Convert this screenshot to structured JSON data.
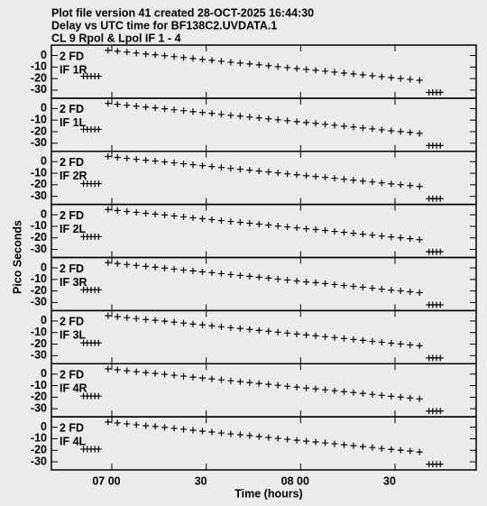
{
  "chart_data": {
    "type": "scatter",
    "title_lines": [
      "Plot file version 41  created 28-OCT-2025 16:44:30",
      "Delay vs UTC time for BF138C2.UVDATA.1",
      "CL 9  Rpol & Lpol  IF 1 - 4"
    ],
    "xlabel": "Time (hours)",
    "ylabel": "Pico Seconds",
    "color": "#000000",
    "xlim": [
      6.68,
      8.93
    ],
    "xticks": [
      {
        "value": 7,
        "label": "07 00"
      },
      {
        "value": 7.5,
        "label": "30"
      },
      {
        "value": 8,
        "label": "08 00"
      },
      {
        "value": 8.5,
        "label": "30"
      }
    ],
    "ylim": [
      -37,
      9
    ],
    "yticks": [
      0,
      -10,
      -20,
      -30
    ],
    "x": [
      6.85,
      6.87,
      6.89,
      6.91,
      6.93,
      6.98,
      7.03,
      7.08,
      7.13,
      7.18,
      7.23,
      7.28,
      7.33,
      7.38,
      7.43,
      7.48,
      7.53,
      7.58,
      7.63,
      7.68,
      7.73,
      7.78,
      7.83,
      7.88,
      7.93,
      7.98,
      8.03,
      8.08,
      8.13,
      8.18,
      8.23,
      8.28,
      8.33,
      8.38,
      8.43,
      8.48,
      8.53,
      8.58,
      8.63,
      8.68,
      8.7,
      8.72,
      8.74
    ],
    "series": [
      {
        "source": "2 FD",
        "name": "IF 1R",
        "values": [
          -18,
          -18,
          -18,
          -18,
          -18,
          4.5,
          3.7,
          2.9,
          2.1,
          1.3,
          0.6,
          -0.2,
          -1.0,
          -1.8,
          -2.6,
          -3.4,
          -4.2,
          -5.0,
          -5.8,
          -6.5,
          -7.3,
          -8.1,
          -8.9,
          -9.7,
          -10.5,
          -11.3,
          -12.1,
          -12.8,
          -13.6,
          -14.4,
          -15.2,
          -16.0,
          -16.8,
          -17.6,
          -18.4,
          -19.2,
          -19.9,
          -20.7,
          -21.5,
          -32,
          -32,
          -32,
          -32
        ]
      },
      {
        "source": "2 FD",
        "name": "IF 1L",
        "values": [
          -18,
          -18,
          -18,
          -18,
          -18,
          4.5,
          3.7,
          2.9,
          2.1,
          1.3,
          0.6,
          -0.2,
          -1.0,
          -1.8,
          -2.6,
          -3.4,
          -4.2,
          -5.0,
          -5.8,
          -6.5,
          -7.3,
          -8.1,
          -8.9,
          -9.7,
          -10.5,
          -11.3,
          -12.1,
          -12.8,
          -13.6,
          -14.4,
          -15.2,
          -16.0,
          -16.8,
          -17.6,
          -18.4,
          -19.2,
          -19.9,
          -20.7,
          -21.5,
          -32,
          -32,
          -32,
          -32
        ]
      },
      {
        "source": "2 FD",
        "name": "IF 2R",
        "values": [
          -19,
          -19,
          -19,
          -19,
          -19,
          4.5,
          3.7,
          2.9,
          2.1,
          1.3,
          0.6,
          -0.2,
          -1.0,
          -1.8,
          -2.6,
          -3.4,
          -4.2,
          -5.0,
          -5.8,
          -6.5,
          -7.3,
          -8.1,
          -8.9,
          -9.7,
          -10.5,
          -11.3,
          -12.1,
          -12.8,
          -13.6,
          -14.4,
          -15.2,
          -16.0,
          -16.8,
          -17.6,
          -18.4,
          -19.2,
          -19.9,
          -20.7,
          -21.5,
          -32,
          -32,
          -32,
          -32
        ]
      },
      {
        "source": "2 FD",
        "name": "IF 2L",
        "values": [
          -19,
          -19,
          -19,
          -19,
          -19,
          4.5,
          3.7,
          2.9,
          2.1,
          1.3,
          0.6,
          -0.2,
          -1.0,
          -1.8,
          -2.6,
          -3.4,
          -4.2,
          -5.0,
          -5.8,
          -6.5,
          -7.3,
          -8.1,
          -8.9,
          -9.7,
          -10.5,
          -11.3,
          -12.1,
          -12.8,
          -13.6,
          -14.4,
          -15.2,
          -16.0,
          -16.8,
          -17.6,
          -18.4,
          -19.2,
          -19.9,
          -20.7,
          -21.5,
          -32,
          -32,
          -32,
          -32
        ]
      },
      {
        "source": "2 FD",
        "name": "IF 3R",
        "values": [
          -19,
          -19,
          -19,
          -19,
          -19,
          4.5,
          3.7,
          2.9,
          2.1,
          1.3,
          0.6,
          -0.2,
          -1.0,
          -1.8,
          -2.6,
          -3.4,
          -4.2,
          -5.0,
          -5.8,
          -6.5,
          -7.3,
          -8.1,
          -8.9,
          -9.7,
          -10.5,
          -11.3,
          -12.1,
          -12.8,
          -13.6,
          -14.4,
          -15.2,
          -16.0,
          -16.8,
          -17.6,
          -18.4,
          -19.2,
          -19.9,
          -20.7,
          -21.5,
          -32,
          -32,
          -32,
          -32
        ]
      },
      {
        "source": "2 FD",
        "name": "IF 3L",
        "values": [
          -19,
          -19,
          -19,
          -19,
          -19,
          4.5,
          3.7,
          2.9,
          2.1,
          1.3,
          0.6,
          -0.2,
          -1.0,
          -1.8,
          -2.6,
          -3.4,
          -4.2,
          -5.0,
          -5.8,
          -6.5,
          -7.3,
          -8.1,
          -8.9,
          -9.7,
          -10.5,
          -11.3,
          -12.1,
          -12.8,
          -13.6,
          -14.4,
          -15.2,
          -16.0,
          -16.8,
          -17.6,
          -18.4,
          -19.2,
          -19.9,
          -20.7,
          -21.5,
          -32,
          -32,
          -32,
          -32
        ]
      },
      {
        "source": "2 FD",
        "name": "IF 4R",
        "values": [
          -19,
          -19,
          -19,
          -19,
          -19,
          4.5,
          3.7,
          2.9,
          2.1,
          1.3,
          0.6,
          -0.2,
          -1.0,
          -1.8,
          -2.6,
          -3.4,
          -4.2,
          -5.0,
          -5.8,
          -6.5,
          -7.3,
          -8.1,
          -8.9,
          -9.7,
          -10.5,
          -11.3,
          -12.1,
          -12.8,
          -13.6,
          -14.4,
          -15.2,
          -16.0,
          -16.8,
          -17.6,
          -18.4,
          -19.2,
          -19.9,
          -20.7,
          -21.5,
          -32,
          -32,
          -32,
          -32
        ]
      },
      {
        "source": "2 FD",
        "name": "IF 4L",
        "values": [
          -19,
          -19,
          -19,
          -19,
          -19,
          4.5,
          3.7,
          2.9,
          2.1,
          1.3,
          0.6,
          -0.2,
          -1.0,
          -1.8,
          -2.6,
          -3.4,
          -4.2,
          -5.0,
          -5.8,
          -6.5,
          -7.3,
          -8.1,
          -8.9,
          -9.7,
          -10.5,
          -11.3,
          -12.1,
          -12.8,
          -13.6,
          -14.4,
          -15.2,
          -16.0,
          -16.8,
          -17.6,
          -18.4,
          -19.2,
          -19.9,
          -20.7,
          -21.5,
          -32,
          -32,
          -32,
          -32
        ]
      }
    ]
  }
}
